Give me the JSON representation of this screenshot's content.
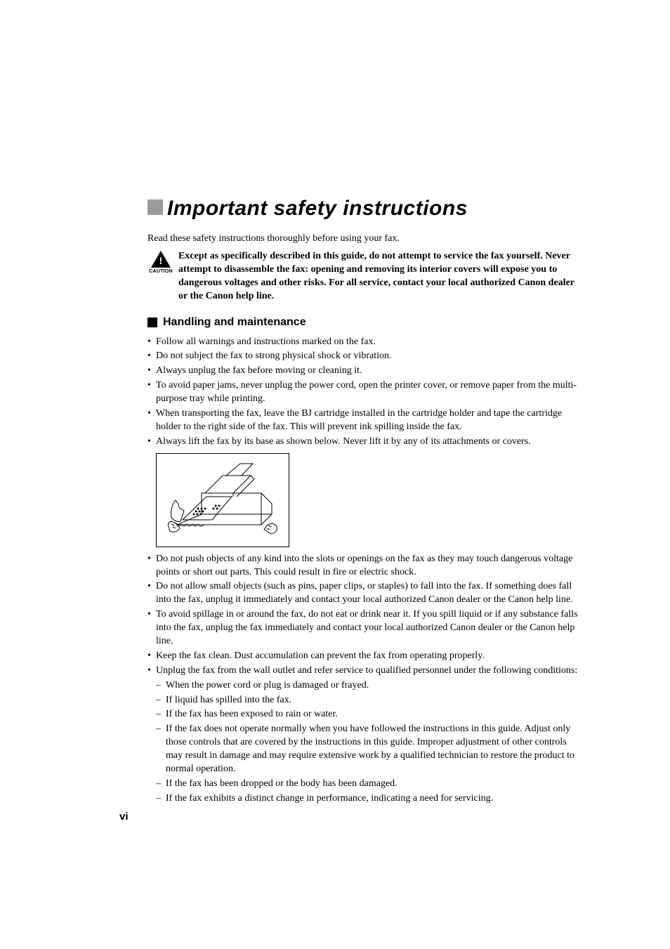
{
  "page": {
    "title": "Important safety instructions",
    "title_fontsize": 30,
    "title_block_color": "#9b9b9b",
    "intro": "Read these safety instructions thoroughly before using your fax.",
    "body_fontsize": 14,
    "page_number": "vi",
    "page_number_fontsize": 15
  },
  "caution": {
    "icon_label": "CAUTION",
    "text": "Except as specifically described in this guide, do not attempt to service the fax yourself. Never attempt to disassemble the fax: opening and removing its interior covers will expose you to dangerous voltages and other risks. For all service, contact your local authorized Canon dealer or the Canon help line."
  },
  "section": {
    "block_color": "#000000",
    "title": "Handling and maintenance",
    "title_fontsize": 16,
    "bullets_before_image": [
      "Follow all warnings and instructions marked on the fax.",
      "Do not subject the fax to strong physical shock or vibration.",
      "Always unplug the fax before moving or cleaning it.",
      "To avoid paper jams, never unplug the power cord, open the printer cover, or remove paper from the multi-purpose tray while printing.",
      "When transporting the fax, leave the BJ cartridge installed in the cartridge holder and tape the cartridge holder to the right side of the fax. This will prevent ink spilling inside the fax.",
      "Always lift the fax by its base as shown below. Never lift it by any of its attachments or covers."
    ],
    "bullets_after_image": [
      "Do not push objects of any kind into the slots or openings on the fax as they may touch dangerous voltage points or short out parts. This could result in fire or electric shock.",
      "Do not allow small objects (such as pins, paper clips, or staples) to fall into the fax. If something does fall into the fax, unplug it immediately and contact your local authorized Canon dealer or the Canon help line.",
      "To avoid spillage in or around the fax, do not eat or drink near it. If you spill liquid or if any substance falls into the fax, unplug the fax immediately and contact your local authorized Canon dealer or the Canon help line.",
      "Keep the fax clean. Dust accumulation can prevent the fax from operating properly."
    ],
    "last_bullet_lead": "Unplug the fax from the wall outlet and refer service to qualified personnel under the following conditions:",
    "sub_bullets": [
      "When the power cord or plug is damaged or frayed.",
      "If liquid has spilled into the fax.",
      "If the fax has been exposed to rain or water.",
      "If the fax does not operate normally when you have followed the instructions in this guide. Adjust only those controls that are covered by the instructions in this guide. Improper adjustment of other controls may result in damage and may require extensive work by a qualified technician to restore the product to normal operation.",
      "If the fax has been dropped or the body has been damaged.",
      "If the fax exhibits a distinct change in performance, indicating a need for servicing."
    ]
  }
}
